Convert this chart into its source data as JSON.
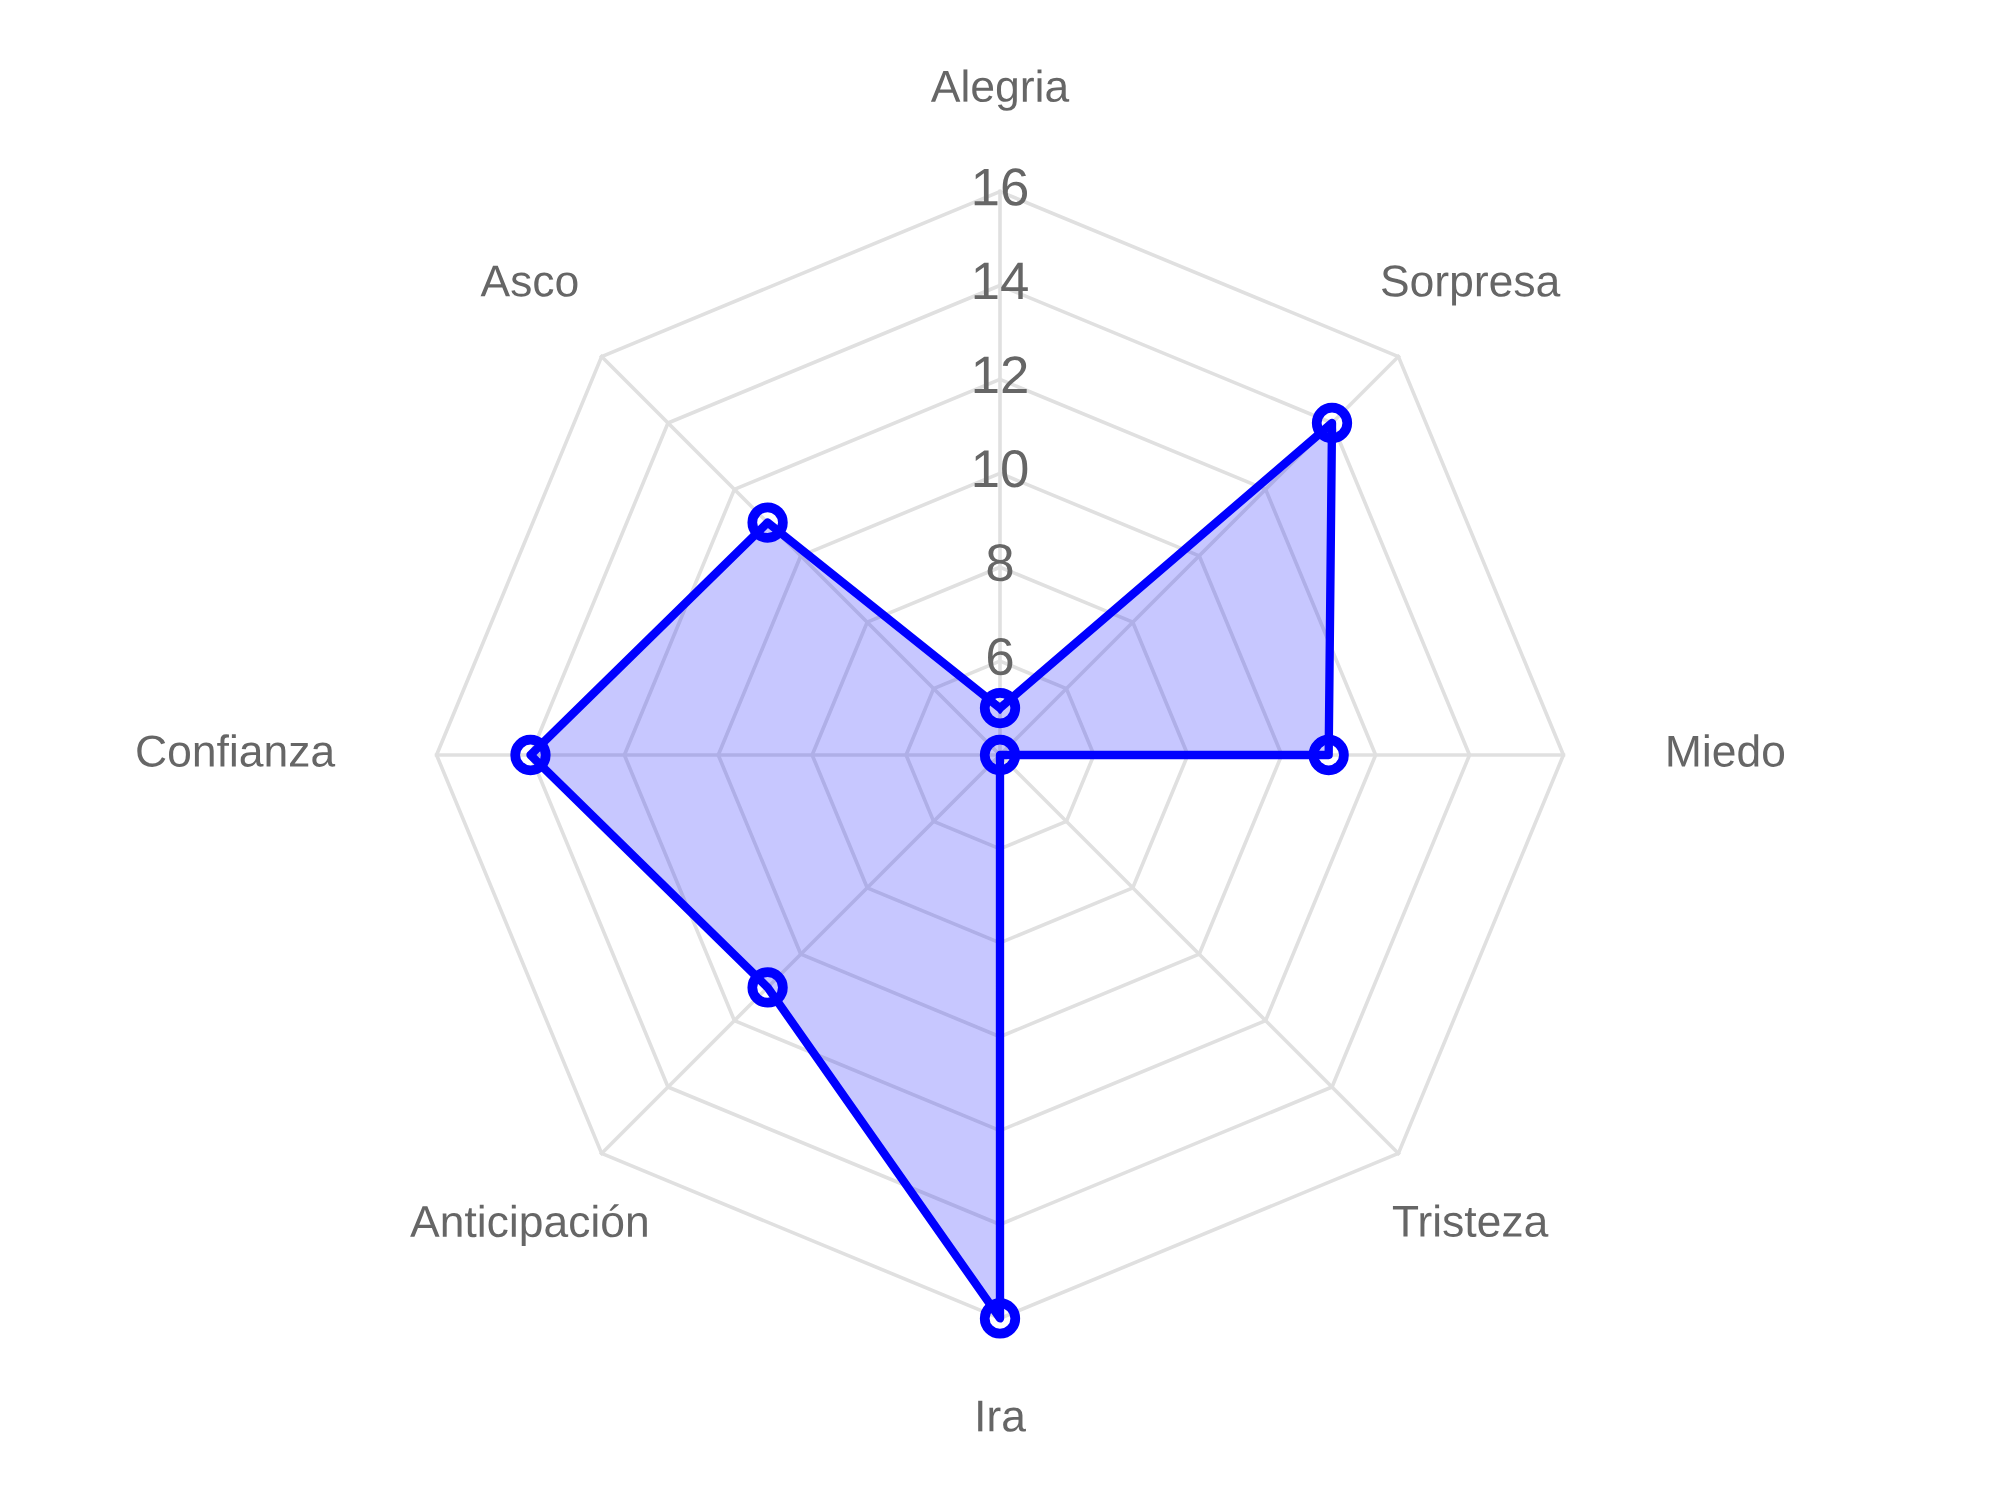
{
  "chart_data": {
    "type": "radar",
    "categories": [
      "Alegria",
      "Sorpresa",
      "Miedo",
      "Tristeza",
      "Ira",
      "Anticipación",
      "Confianza",
      "Asco"
    ],
    "series": [
      {
        "color": "#0000ff",
        "values": [
          5,
          14,
          11,
          4,
          16,
          11,
          14,
          11
        ]
      }
    ],
    "ylim": [
      4,
      16
    ],
    "yticks": [
      6,
      8,
      10,
      12,
      14,
      16
    ],
    "grid": true,
    "marker": "circle",
    "line_style": "solid"
  }
}
